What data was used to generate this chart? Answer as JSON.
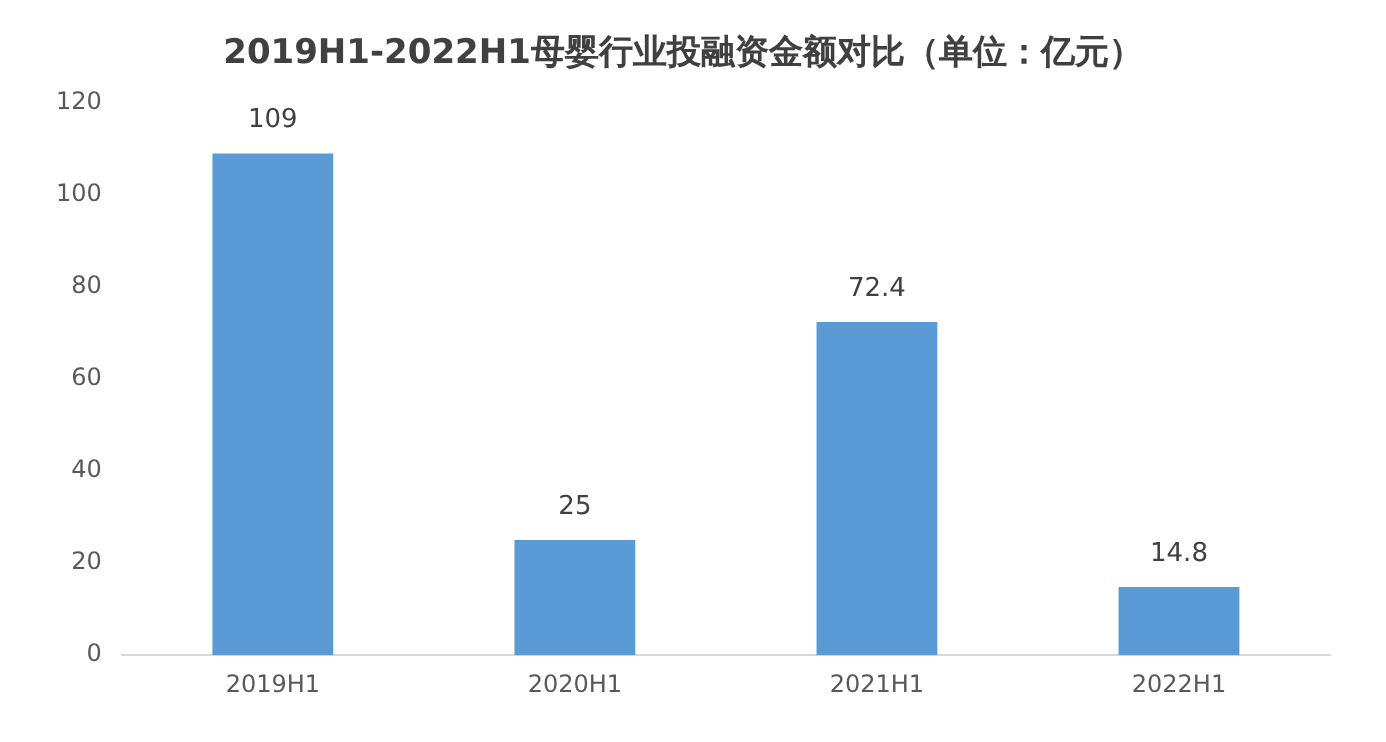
{
  "chart_data": {
    "type": "bar",
    "title": "2019H1-2022H1母婴行业投融资金额对比（单位：亿元）",
    "categories": [
      "2019H1",
      "2020H1",
      "2021H1",
      "2022H1"
    ],
    "values": [
      109,
      25,
      72.4,
      14.8
    ],
    "color": "#5b9bd5",
    "ylim": [
      0,
      120
    ],
    "yticks": [
      0,
      20,
      40,
      60,
      80,
      100,
      120
    ],
    "grid": false,
    "data_labels": true
  }
}
